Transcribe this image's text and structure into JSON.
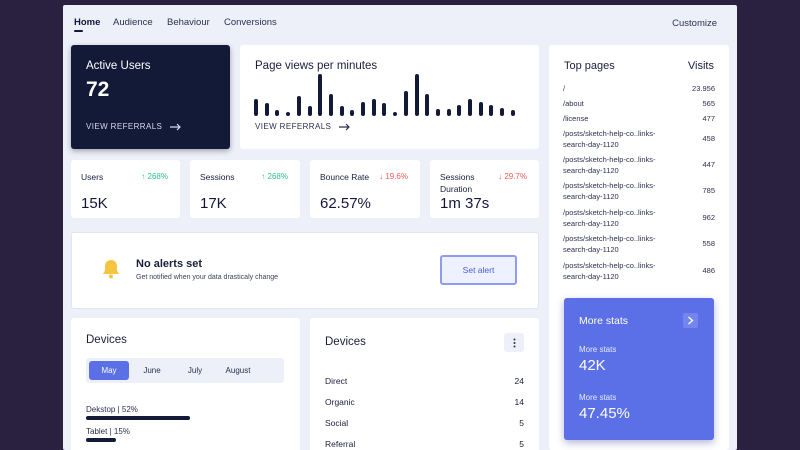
{
  "nav": {
    "tabs": [
      {
        "label": "Home",
        "active": true
      },
      {
        "label": "Audience",
        "active": false
      },
      {
        "label": "Behaviour",
        "active": false
      },
      {
        "label": "Conversions",
        "active": false
      }
    ],
    "customize_label": "Customize"
  },
  "active_users": {
    "title": "Active Users",
    "value": "72",
    "link_label": "VIEW REFERRALS"
  },
  "page_views": {
    "title": "Page views per minutes",
    "link_label": "VIEW REFERRALS",
    "bar_values": [
      12,
      9,
      4,
      3,
      14,
      7,
      30,
      16,
      7,
      4,
      10,
      12,
      9,
      3,
      18,
      30,
      16,
      5,
      5,
      8,
      12,
      10,
      8,
      6,
      4
    ]
  },
  "stats": [
    {
      "label": "Users",
      "trend": "268%",
      "direction": "up",
      "value": "15K"
    },
    {
      "label": "Sessions",
      "trend": "268%",
      "direction": "up",
      "value": "17K"
    },
    {
      "label": "Bounce Rate",
      "trend": "19.6%",
      "direction": "down",
      "value": "62.57%"
    },
    {
      "label": "Sessions Duration",
      "trend": "29.7%",
      "direction": "down",
      "value": "1m 37s"
    }
  ],
  "alerts": {
    "title": "No alerts set",
    "subtitle": "Get notified when your data drasticaly change",
    "button_label": "Set alert"
  },
  "top_pages": {
    "title": "Top pages",
    "visits_label": "Visits",
    "rows": [
      {
        "page": "/",
        "visits": "23.956"
      },
      {
        "page": "/about",
        "visits": "565"
      },
      {
        "page": "/license",
        "visits": "477"
      },
      {
        "page": "/posts/sketch-help-co..links-search-day-1120",
        "visits": "458"
      },
      {
        "page": "/posts/sketch-help-co..links-search-day-1120",
        "visits": "447"
      },
      {
        "page": "/posts/sketch-help-co..links-search-day-1120",
        "visits": "785"
      },
      {
        "page": "/posts/sketch-help-co..links-search-day-1120",
        "visits": "962"
      },
      {
        "page": "/posts/sketch-help-co..links-search-day-1120",
        "visits": "558"
      },
      {
        "page": "/posts/sketch-help-co..links-search-day-1120",
        "visits": "486"
      }
    ]
  },
  "more_stats": {
    "title": "More stats",
    "items": [
      {
        "label": "More stats",
        "value": "42K"
      },
      {
        "label": "More stats",
        "value": "47.45%"
      }
    ]
  },
  "devices": {
    "title": "Devices",
    "months": [
      {
        "label": "May",
        "active": true
      },
      {
        "label": "June",
        "active": false
      },
      {
        "label": "July",
        "active": false
      },
      {
        "label": "August",
        "active": false
      }
    ],
    "items": [
      {
        "label": "Dekstop | 52%",
        "percent": 52
      },
      {
        "label": "Tablet | 15%",
        "percent": 15
      }
    ]
  },
  "channels": {
    "title": "Devices",
    "rows": [
      {
        "label": "Direct",
        "value": "24"
      },
      {
        "label": "Organic",
        "value": "14"
      },
      {
        "label": "Social",
        "value": "5"
      },
      {
        "label": "Referral",
        "value": "5"
      }
    ]
  },
  "colors": {
    "dark": "#131a38",
    "accent": "#5b6fe6",
    "up": "#2fc38d",
    "down": "#ef5a5a"
  }
}
